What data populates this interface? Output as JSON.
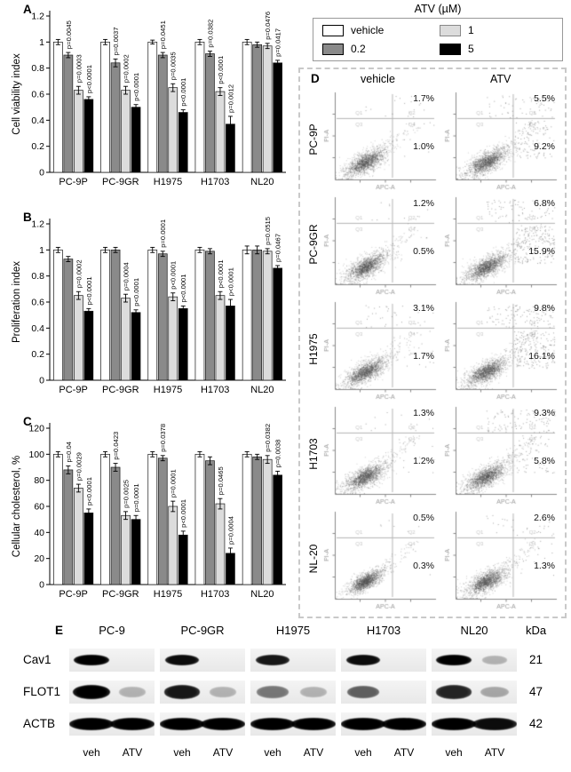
{
  "legend": {
    "title": "ATV (µM)",
    "items": [
      {
        "label": "vehicle",
        "color": "#ffffff"
      },
      {
        "label": "1",
        "color": "#dcdcdc"
      },
      {
        "label": "0.2",
        "color": "#8a8a8a"
      },
      {
        "label": "5",
        "color": "#000000"
      }
    ]
  },
  "chart_data": [
    {
      "type": "bar",
      "panel_label": "A",
      "ylabel": "Cell viability index",
      "ylim": [
        0,
        1.2
      ],
      "yticks": [
        0,
        0.2,
        0.4,
        0.6,
        0.8,
        1,
        1.2
      ],
      "categories": [
        "PC-9P",
        "PC-9GR",
        "H1975",
        "H1703",
        "NL20"
      ],
      "series": [
        {
          "name": "vehicle",
          "color": "#ffffff",
          "values": [
            1,
            1,
            1,
            1,
            1
          ],
          "errors": [
            0.02,
            0.02,
            0.015,
            0.02,
            0.02
          ]
        },
        {
          "name": "0.2",
          "color": "#8a8a8a",
          "values": [
            0.9,
            0.84,
            0.9,
            0.91,
            0.98
          ],
          "errors": [
            0.02,
            0.03,
            0.02,
            0.02,
            0.02
          ]
        },
        {
          "name": "1",
          "color": "#dcdcdc",
          "values": [
            0.63,
            0.63,
            0.65,
            0.62,
            0.97
          ],
          "errors": [
            0.03,
            0.03,
            0.03,
            0.03,
            0.02
          ]
        },
        {
          "name": "5",
          "color": "#000000",
          "values": [
            0.56,
            0.5,
            0.46,
            0.37,
            0.84
          ],
          "errors": [
            0.02,
            0.02,
            0.02,
            0.06,
            0.02
          ]
        }
      ],
      "annotations": [
        {
          "cat": 0,
          "series": 1,
          "text": "p=0.0045"
        },
        {
          "cat": 0,
          "series": 2,
          "text": "p=0.0003"
        },
        {
          "cat": 0,
          "series": 3,
          "text": "p<0.0001"
        },
        {
          "cat": 1,
          "series": 1,
          "text": "p=0.0037"
        },
        {
          "cat": 1,
          "series": 2,
          "text": "p=0.0002"
        },
        {
          "cat": 1,
          "series": 3,
          "text": "p<0.0001"
        },
        {
          "cat": 2,
          "series": 1,
          "text": "p=0.0451"
        },
        {
          "cat": 2,
          "series": 2,
          "text": "p=0.0035"
        },
        {
          "cat": 2,
          "series": 3,
          "text": "p<0.0001"
        },
        {
          "cat": 3,
          "series": 1,
          "text": "p=0.0382"
        },
        {
          "cat": 3,
          "series": 2,
          "text": "p<0.0001"
        },
        {
          "cat": 3,
          "series": 3,
          "text": "p=0.0012"
        },
        {
          "cat": 4,
          "series": 2,
          "text": "p=0.0476"
        },
        {
          "cat": 4,
          "series": 3,
          "text": "p=0.0417"
        }
      ]
    },
    {
      "type": "bar",
      "panel_label": "B",
      "ylabel": "Proliferation index",
      "ylim": [
        0,
        1.2
      ],
      "yticks": [
        0,
        0.2,
        0.4,
        0.6,
        0.8,
        1,
        1.2
      ],
      "categories": [
        "PC-9P",
        "PC-9GR",
        "H1975",
        "H1703",
        "NL20"
      ],
      "series": [
        {
          "name": "vehicle",
          "color": "#ffffff",
          "values": [
            1,
            1,
            1,
            1,
            1
          ],
          "errors": [
            0.02,
            0.02,
            0.02,
            0.02,
            0.03
          ]
        },
        {
          "name": "0.2",
          "color": "#8a8a8a",
          "values": [
            0.93,
            1.0,
            0.97,
            0.99,
            1.0
          ],
          "errors": [
            0.02,
            0.02,
            0.02,
            0.02,
            0.03
          ]
        },
        {
          "name": "1",
          "color": "#dcdcdc",
          "values": [
            0.65,
            0.63,
            0.64,
            0.65,
            0.99
          ],
          "errors": [
            0.03,
            0.03,
            0.03,
            0.03,
            0.02
          ]
        },
        {
          "name": "5",
          "color": "#000000",
          "values": [
            0.53,
            0.52,
            0.55,
            0.57,
            0.86
          ],
          "errors": [
            0.02,
            0.02,
            0.02,
            0.05,
            0.02
          ]
        }
      ],
      "annotations": [
        {
          "cat": 0,
          "series": 2,
          "text": "p=0.0002"
        },
        {
          "cat": 0,
          "series": 3,
          "text": "p<0.0001"
        },
        {
          "cat": 1,
          "series": 2,
          "text": "p=0.0004"
        },
        {
          "cat": 1,
          "series": 3,
          "text": "p<0.0001"
        },
        {
          "cat": 2,
          "series": 1,
          "text": "p=0.0001"
        },
        {
          "cat": 2,
          "series": 2,
          "text": "p<0.0001"
        },
        {
          "cat": 2,
          "series": 3,
          "text": "p<0.0001"
        },
        {
          "cat": 3,
          "series": 2,
          "text": "p<0.0001"
        },
        {
          "cat": 3,
          "series": 3,
          "text": "p<0.0001"
        },
        {
          "cat": 4,
          "series": 2,
          "text": "p=0.0515"
        },
        {
          "cat": 4,
          "series": 3,
          "text": "p=0.0467"
        }
      ]
    },
    {
      "type": "bar",
      "panel_label": "C",
      "ylabel": "Cellular cholesterol, %",
      "ylim": [
        0,
        120
      ],
      "yticks": [
        0,
        20,
        40,
        60,
        80,
        100,
        120
      ],
      "categories": [
        "PC-9P",
        "PC-9GR",
        "H1975",
        "H1703",
        "NL20"
      ],
      "series": [
        {
          "name": "vehicle",
          "color": "#ffffff",
          "values": [
            100,
            100,
            100,
            100,
            100
          ],
          "errors": [
            2,
            2,
            2,
            2,
            2
          ]
        },
        {
          "name": "0.2",
          "color": "#8a8a8a",
          "values": [
            88,
            90,
            97,
            95,
            98
          ],
          "errors": [
            3,
            3,
            2,
            3,
            2
          ]
        },
        {
          "name": "1",
          "color": "#dcdcdc",
          "values": [
            74,
            53,
            60,
            62,
            96
          ],
          "errors": [
            3,
            3,
            4,
            4,
            3
          ]
        },
        {
          "name": "5",
          "color": "#000000",
          "values": [
            55,
            50,
            38,
            24,
            84
          ],
          "errors": [
            3,
            3,
            3,
            4,
            3
          ]
        }
      ],
      "annotations": [
        {
          "cat": 0,
          "series": 1,
          "text": "p=0.04"
        },
        {
          "cat": 0,
          "series": 2,
          "text": "p=0.0029"
        },
        {
          "cat": 0,
          "series": 3,
          "text": "p<0.0001"
        },
        {
          "cat": 1,
          "series": 1,
          "text": "p=0.0423"
        },
        {
          "cat": 1,
          "series": 2,
          "text": "p=0.0025"
        },
        {
          "cat": 1,
          "series": 3,
          "text": "p=0.0001"
        },
        {
          "cat": 2,
          "series": 1,
          "text": "p=0.0378"
        },
        {
          "cat": 2,
          "series": 2,
          "text": "p=0.0001"
        },
        {
          "cat": 2,
          "series": 3,
          "text": "p<0.0001"
        },
        {
          "cat": 3,
          "series": 2,
          "text": "p=0.0465"
        },
        {
          "cat": 3,
          "series": 3,
          "text": "p=0.0004"
        },
        {
          "cat": 4,
          "series": 2,
          "text": "p=0.0382"
        },
        {
          "cat": 4,
          "series": 3,
          "text": "p=0.0038"
        }
      ]
    }
  ],
  "flow": {
    "panel_label": "D",
    "columns": [
      "vehicle",
      "ATV"
    ],
    "axis_x": "APC-A",
    "axis_y": "PI-A",
    "quadrants": [
      "Q1",
      "Q2",
      "Q3",
      "Q4"
    ],
    "rows": [
      {
        "name": "PC-9P",
        "plots": [
          {
            "q2": "1.7%",
            "q4": "1.0%"
          },
          {
            "q2": "5.5%",
            "q4": "9.2%"
          }
        ]
      },
      {
        "name": "PC-9GR",
        "plots": [
          {
            "q2": "1.2%",
            "q4": "0.5%"
          },
          {
            "q2": "6.8%",
            "q4": "15.9%"
          }
        ]
      },
      {
        "name": "H1975",
        "plots": [
          {
            "q2": "3.1%",
            "q4": "1.7%"
          },
          {
            "q2": "9.8%",
            "q4": "16.1%"
          }
        ]
      },
      {
        "name": "H1703",
        "plots": [
          {
            "q2": "1.3%",
            "q4": "1.2%"
          },
          {
            "q2": "9.3%",
            "q4": "5.8%"
          }
        ]
      },
      {
        "name": "NL-20",
        "plots": [
          {
            "q2": "0.5%",
            "q4": "0.3%"
          },
          {
            "q2": "2.6%",
            "q4": "1.3%"
          }
        ]
      }
    ]
  },
  "blot": {
    "panel_label": "E",
    "kda_header": "kDa",
    "cell_lines": [
      "PC-9",
      "PC-9GR",
      "H1975",
      "H1703",
      "NL20"
    ],
    "lane_labels": [
      "veh",
      "ATV"
    ],
    "rows": [
      {
        "protein": "Cav1",
        "kda": "21",
        "lanes": [
          1,
          0,
          0.95,
          0,
          0.9,
          0,
          0.95,
          0,
          1,
          0.08
        ]
      },
      {
        "protein": "FLOT1",
        "kda": "47",
        "lanes": [
          1,
          0.03,
          0.9,
          0.05,
          0.5,
          0.06,
          0.6,
          0.02,
          0.85,
          0.3
        ]
      },
      {
        "protein": "ACTB",
        "kda": "42",
        "lanes": [
          1,
          1,
          1,
          1,
          1,
          1,
          1,
          1,
          1,
          0.95
        ]
      }
    ]
  }
}
